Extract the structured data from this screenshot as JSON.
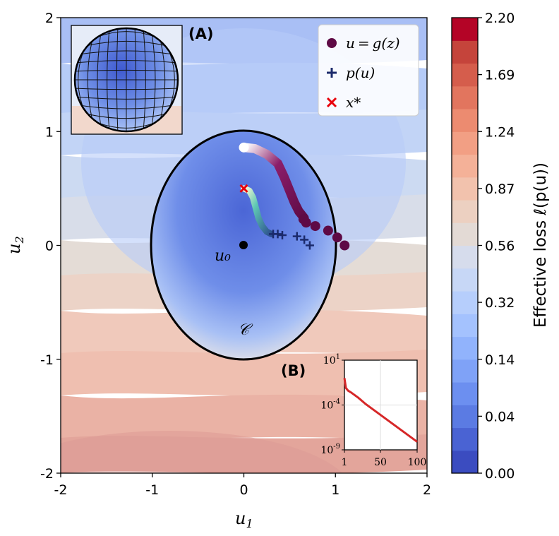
{
  "chart_data": [
    {
      "type": "contour",
      "panel": "main",
      "xlabel": "u_1",
      "ylabel": "u_2",
      "xlim": [
        -2,
        2
      ],
      "ylim": [
        -2,
        2
      ],
      "xticks": [
        "-2",
        "-1",
        "0",
        "1",
        "2"
      ],
      "yticks": [
        "-2",
        "-1",
        "0",
        "1",
        "2"
      ],
      "colorbar": {
        "label": "Effective loss ℓ(p(u))",
        "ticks": [
          "0.00",
          "0.04",
          "0.14",
          "0.32",
          "0.56",
          "0.87",
          "1.24",
          "1.69",
          "2.20"
        ],
        "colormap": "coolwarm",
        "low_color": "#3b4cc0",
        "mid_color": "#dddddd",
        "high_color": "#b40426"
      },
      "constraint_set": {
        "label": "𝒞",
        "center": [
          0,
          0
        ],
        "rx": 1.0,
        "ry": 1.0
      },
      "start_point": {
        "label": "u₀",
        "x": 0,
        "y": 0
      },
      "series": [
        {
          "name": "u=g(z)",
          "marker": "circle",
          "color": "#5e0a45",
          "x": [
            0.0,
            0.1,
            0.2,
            0.35,
            0.45,
            0.5,
            0.55,
            0.58,
            0.62,
            0.65,
            0.68,
            0.78,
            0.92,
            1.02,
            1.1
          ],
          "y": [
            0.86,
            0.85,
            0.82,
            0.74,
            0.62,
            0.52,
            0.42,
            0.33,
            0.27,
            0.23,
            0.2,
            0.17,
            0.13,
            0.07,
            0.0
          ]
        },
        {
          "name": "p(u)",
          "marker": "plus",
          "color": "#1b2a6b",
          "x": [
            0.0,
            0.08,
            0.12,
            0.14,
            0.16,
            0.2,
            0.24,
            0.28,
            0.32,
            0.37,
            0.42,
            0.58,
            0.66,
            0.72
          ],
          "y": [
            0.5,
            0.45,
            0.38,
            0.3,
            0.22,
            0.16,
            0.12,
            0.1,
            0.1,
            0.1,
            0.09,
            0.08,
            0.05,
            0.0
          ]
        },
        {
          "name": "x*",
          "marker": "x",
          "color": "#e8000b",
          "x": [
            0.0
          ],
          "y": [
            0.5
          ]
        }
      ]
    },
    {
      "type": "line",
      "panel": "B",
      "panel_label": "(B)",
      "yscale": "log",
      "xticks": [
        "1",
        "50",
        "100"
      ],
      "yticks": [
        "10^1",
        "10^-4",
        "10^-9"
      ],
      "xlim": [
        1,
        100
      ],
      "ylim_exponents": [
        -9,
        1
      ],
      "series": [
        {
          "color": "#d62728",
          "x": [
            1,
            3,
            6,
            10,
            20,
            30,
            40,
            50,
            60,
            70,
            80,
            90,
            100
          ],
          "log10_y": [
            -1.0,
            -2.1,
            -2.4,
            -2.6,
            -3.2,
            -3.9,
            -4.5,
            -5.1,
            -5.7,
            -6.3,
            -6.9,
            -7.5,
            -8.1
          ]
        }
      ]
    },
    {
      "type": "sphere",
      "panel": "A",
      "panel_label": "(A)"
    }
  ],
  "legend": {
    "items": [
      {
        "label": "u = g(z)"
      },
      {
        "label": "p(u)"
      },
      {
        "label": "x*"
      }
    ]
  }
}
